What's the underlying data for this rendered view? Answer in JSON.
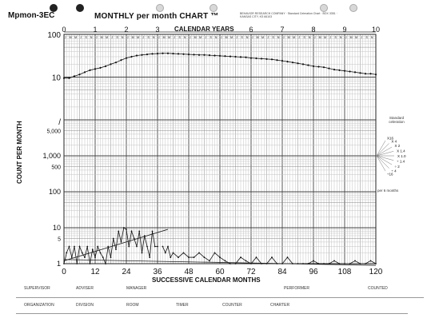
{
  "header": {
    "code": "Mpmon-3EC",
    "title": "MONTHLY per month CHART ™",
    "calendar_years_label": "CALENDAR YEARS",
    "fineprint": "BEHAVIOR RESEARCH COMPANY · Standard Celeration Chart · BOX 3351 · KANSAS CITY, KS 66103"
  },
  "footer": {
    "row1": [
      "SUPERVISOR",
      "ADVISER",
      "MANAGER",
      "PERFORMER",
      "COUNTED"
    ],
    "row2": [
      "ORGANIZATION",
      "DIVISION",
      "ROOM",
      "TIMER",
      "COUNTER",
      "CHARTER"
    ]
  },
  "celeration": {
    "title": "Standard\nceleration",
    "labels": [
      "X16",
      "X 4",
      "X 2",
      "X 1.4",
      "X 1.0",
      "÷ 1.4",
      "÷ 2",
      "÷ 4",
      "÷16"
    ],
    "per_months": "per 6 months"
  },
  "chart_data": {
    "type": "line",
    "title": "MONTHLY per month CHART ™",
    "xlabel": "SUCCESSIVE CALENDAR MONTHS",
    "ylabel": "COUNT PER MONTH",
    "x_top_label": "CALENDAR YEARS",
    "xlim": [
      0,
      120
    ],
    "ylim": [
      1,
      100
    ],
    "y_scale": "log",
    "grid": true,
    "x_ticks": [
      0,
      12,
      24,
      36,
      48,
      60,
      72,
      84,
      96,
      108,
      120
    ],
    "x_tick_labels": [
      "0",
      "12",
      "24",
      "36",
      "48",
      "60",
      "72",
      "84",
      "96",
      "108",
      "120"
    ],
    "top_ticks": [
      0,
      1,
      2,
      3,
      4,
      5,
      6,
      7,
      8,
      9,
      10
    ],
    "top_tick_labels": [
      "0",
      "1",
      "2",
      "3",
      "",
      "",
      "6",
      "7",
      "8",
      "9",
      "10"
    ],
    "month_letters": [
      "J",
      "F",
      "M",
      "A",
      "M",
      "J",
      "J",
      "A",
      "S",
      "O",
      "N",
      "D"
    ],
    "y_ticks_upper": [
      10,
      100
    ],
    "y_tick_labels_upper": [
      "10",
      "100"
    ],
    "y_ticks_lower": [
      1,
      5,
      10,
      100,
      500,
      1000,
      5000
    ],
    "y_tick_labels_lower": [
      "1",
      "5",
      "10",
      "100",
      "500",
      "1,000",
      "5,000"
    ],
    "series": [
      {
        "panel": "upper",
        "x": [
          0,
          2,
          4,
          6,
          8,
          10,
          12,
          14,
          16,
          18,
          20,
          22,
          24,
          26,
          28,
          30,
          32,
          34,
          36,
          38,
          40,
          42,
          44,
          46,
          48,
          50,
          52,
          54,
          56,
          58,
          60,
          62,
          64,
          66,
          68,
          70,
          72,
          74,
          76,
          78,
          80,
          82,
          84,
          86,
          88,
          90,
          92,
          94,
          96,
          98,
          100,
          102,
          104,
          106,
          108,
          110,
          112,
          114,
          116,
          118,
          120
        ],
        "values": [
          9.5,
          9.5,
          10.5,
          11.5,
          13,
          14.5,
          15.5,
          16.5,
          18,
          20,
          22,
          25,
          28,
          30,
          32,
          33,
          34,
          35,
          35.5,
          36,
          36,
          35.5,
          35,
          34.5,
          34,
          33.5,
          33,
          33,
          32.5,
          32,
          31.5,
          31,
          30.5,
          30,
          29.5,
          29,
          28,
          27.5,
          27,
          26.5,
          26,
          25,
          24,
          23,
          22,
          21,
          20,
          19,
          18,
          17.5,
          17,
          16,
          15,
          14.5,
          14,
          13.5,
          13,
          12.5,
          12,
          12,
          11.5
        ]
      },
      {
        "panel": "lower",
        "x": [
          0,
          1,
          2,
          3,
          4,
          5,
          6,
          7,
          8,
          9,
          10,
          11,
          12,
          13,
          14,
          15,
          16,
          17,
          18,
          19,
          20,
          21,
          22,
          23,
          24,
          25,
          26,
          27,
          28,
          29,
          30,
          31,
          32,
          33,
          34,
          35,
          36
        ],
        "values": [
          1,
          2,
          3,
          1.5,
          3,
          1,
          3,
          2,
          1.5,
          3,
          1,
          2.5,
          1.5,
          3,
          2,
          1.5,
          1,
          3,
          1.5,
          5,
          2.5,
          8,
          4,
          10,
          9,
          3,
          8,
          5,
          3,
          8,
          2,
          6,
          3,
          1.5,
          8,
          3,
          3
        ]
      },
      {
        "panel": "lower",
        "x": [
          38,
          39,
          40,
          41,
          42,
          44,
          46,
          48,
          50,
          52,
          54,
          56,
          58,
          60,
          62,
          64,
          66,
          68,
          70,
          72,
          74,
          76,
          78,
          80,
          82,
          84,
          86,
          88,
          90,
          92,
          94,
          96,
          98,
          100,
          102,
          104,
          106,
          108,
          110,
          112,
          114,
          116,
          118,
          120
        ],
        "values": [
          3,
          2,
          3,
          1.5,
          2,
          1.5,
          2,
          1.5,
          1.5,
          2,
          1.5,
          1.2,
          2,
          1.5,
          1.2,
          1,
          1,
          1.5,
          1.2,
          1,
          1.5,
          1,
          1,
          1.5,
          1,
          1,
          1.5,
          1,
          1,
          1,
          1,
          1.2,
          1,
          1,
          1,
          1.2,
          1,
          1,
          1,
          1.2,
          1,
          1,
          1.2,
          1
        ]
      }
    ],
    "celeration_lines": [
      {
        "x": [
          0,
          40
        ],
        "values": [
          1.2,
          9
        ]
      },
      {
        "x": [
          0,
          120
        ],
        "values": [
          1.3,
          0.9
        ]
      }
    ]
  }
}
